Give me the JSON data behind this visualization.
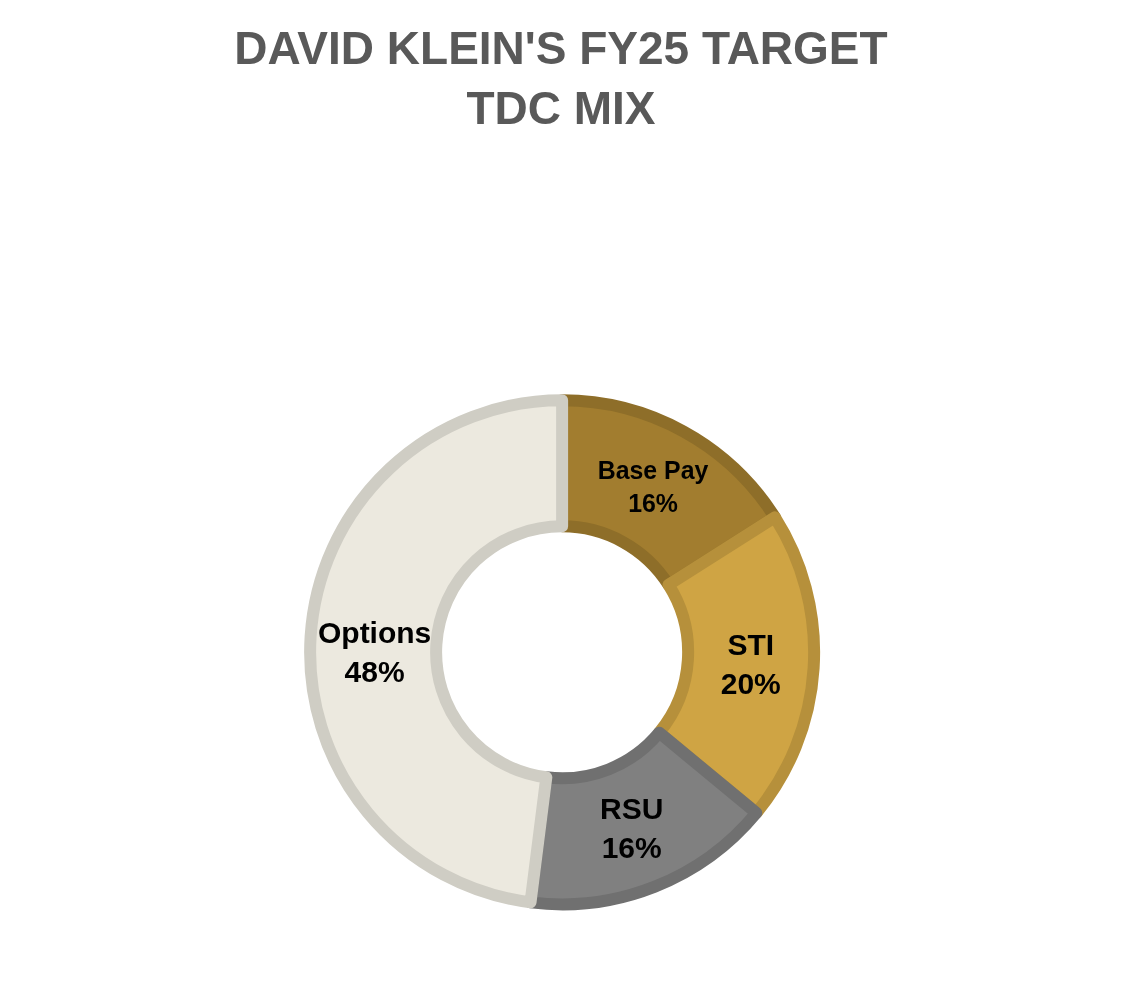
{
  "chart_data": {
    "type": "donut",
    "title": "DAVID KLEIN'S FY25 TARGET TDC MIX",
    "categories": [
      "Base Pay",
      "STI",
      "RSU",
      "Options"
    ],
    "values": [
      16,
      20,
      16,
      48
    ],
    "value_labels": [
      "16%",
      "20%",
      "16%",
      "48%"
    ],
    "colors": [
      "#a27d2f",
      "#cfa444",
      "#808080",
      "#ece9df"
    ],
    "legend": false
  }
}
